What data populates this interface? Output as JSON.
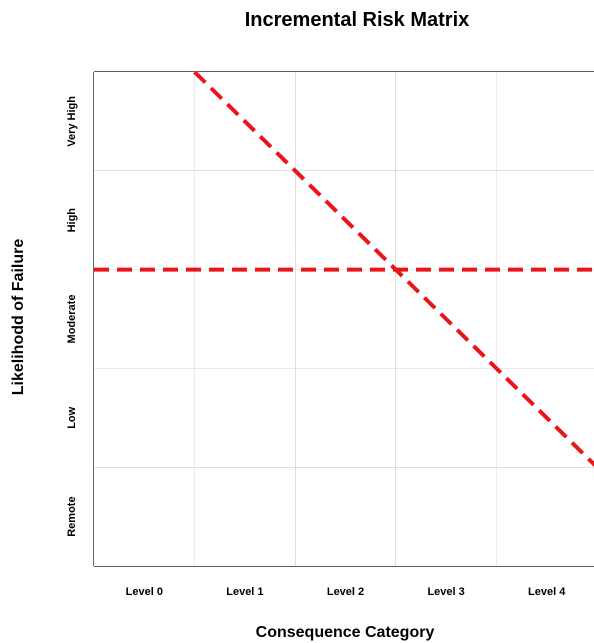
{
  "title": "Incremental Risk Matrix",
  "x_axis": {
    "label": "Consequence Category",
    "categories": [
      "Level 0",
      "Level 1",
      "Level 2",
      "Level 3",
      "Level 4"
    ]
  },
  "y_axis": {
    "label": "Likelihodd of Failure",
    "categories": [
      "Remote",
      "Low",
      "Moderate",
      "High",
      "Very High"
    ]
  },
  "threshold_lines": [
    {
      "kind": "horizontal",
      "level": 3.0,
      "color": "#e8161b",
      "style": "dashed"
    },
    {
      "kind": "diagonal",
      "from": [
        1.0,
        5.0
      ],
      "to": [
        4.0,
        2.0
      ],
      "extends_to_edge": true,
      "color": "#e8161b",
      "style": "dashed"
    }
  ],
  "colors": {
    "grid": "#000000",
    "threshold": "#e8161b",
    "background": "#ffffff"
  }
}
